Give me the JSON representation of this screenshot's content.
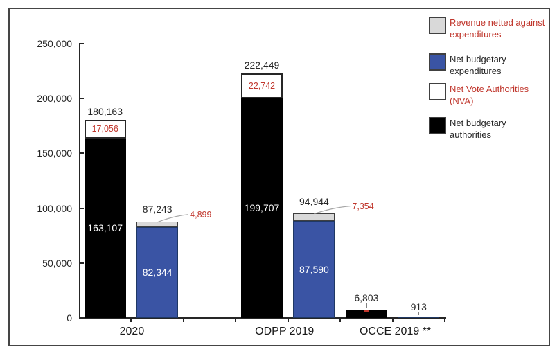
{
  "legend": {
    "items": [
      {
        "name": "revenue-netted-against-expenditures",
        "label": "Revenue netted against expenditures",
        "swatch_color": "#D9D9D9",
        "label_color": "#C0362C"
      },
      {
        "name": "net-budgetary-expenditures",
        "label": "Net budgetary expenditures",
        "swatch_color": "#3A54A4",
        "label_color": "#262626"
      },
      {
        "name": "net-vote-authorities",
        "label": "Net Vote Authorities (NVA)",
        "swatch_color": "#FFFFFF",
        "label_color": "#C0362C"
      },
      {
        "name": "net-budgetary-authorities",
        "label": "Net budgetary authorities",
        "swatch_color": "#000000",
        "label_color": "#262626"
      }
    ]
  },
  "chart_data": {
    "type": "bar",
    "stacked": true,
    "title": "",
    "xlabel": "",
    "ylabel": "",
    "ylim": [
      0,
      250000
    ],
    "grid": false,
    "legend_position": "top-right",
    "yticks": [
      0,
      50000,
      100000,
      150000,
      200000,
      250000
    ],
    "ytick_labels": [
      "0",
      "50,000",
      "100,000",
      "150,000",
      "200,000",
      "250,000"
    ],
    "categories": [
      "2020",
      "ODPP 2019",
      "OCCE 2019 **"
    ],
    "series": [
      {
        "name": "Net budgetary authorities",
        "values": [
          163107,
          199707,
          6803
        ]
      },
      {
        "name": "Net Vote Authorities (NVA)",
        "values": [
          17056,
          22742,
          0
        ]
      },
      {
        "name": "Net budgetary expenditures",
        "values": [
          82344,
          87590,
          913
        ]
      },
      {
        "name": "Revenue netted against expenditures",
        "values": [
          4899,
          7354,
          0
        ]
      }
    ],
    "bars": [
      {
        "slot": 0,
        "kind": "authorities",
        "name": "2020-authorities",
        "base": 163107,
        "segment": 17056,
        "total_label": "180,163",
        "base_label": "163,107",
        "segment_label": "17,056",
        "outside": false
      },
      {
        "slot": 1,
        "kind": "expenditures",
        "name": "2020-expenditures",
        "base": 82344,
        "segment": 4899,
        "total_label": "87,243",
        "base_label": "82,344",
        "segment_label": "4,899",
        "outside": true
      },
      {
        "slot": 3,
        "kind": "authorities",
        "name": "odpp-2019-authorities",
        "base": 199707,
        "segment": 22742,
        "total_label": "222,449",
        "base_label": "199,707",
        "segment_label": "22,742",
        "outside": false
      },
      {
        "slot": 4,
        "kind": "expenditures",
        "name": "odpp-2019-expenditures",
        "base": 87590,
        "segment": 7354,
        "total_label": "94,944",
        "base_label": "87,590",
        "segment_label": "7,354",
        "outside": true
      },
      {
        "slot": 5,
        "kind": "authorities",
        "name": "occe-2019-authorities",
        "base": 6803,
        "total_label": "6,803",
        "leader": true,
        "red_mark": true
      },
      {
        "slot": 6,
        "kind": "expenditures",
        "name": "occe-2019-expenditures",
        "base": 913,
        "total_label": "913",
        "leader": true
      }
    ]
  }
}
